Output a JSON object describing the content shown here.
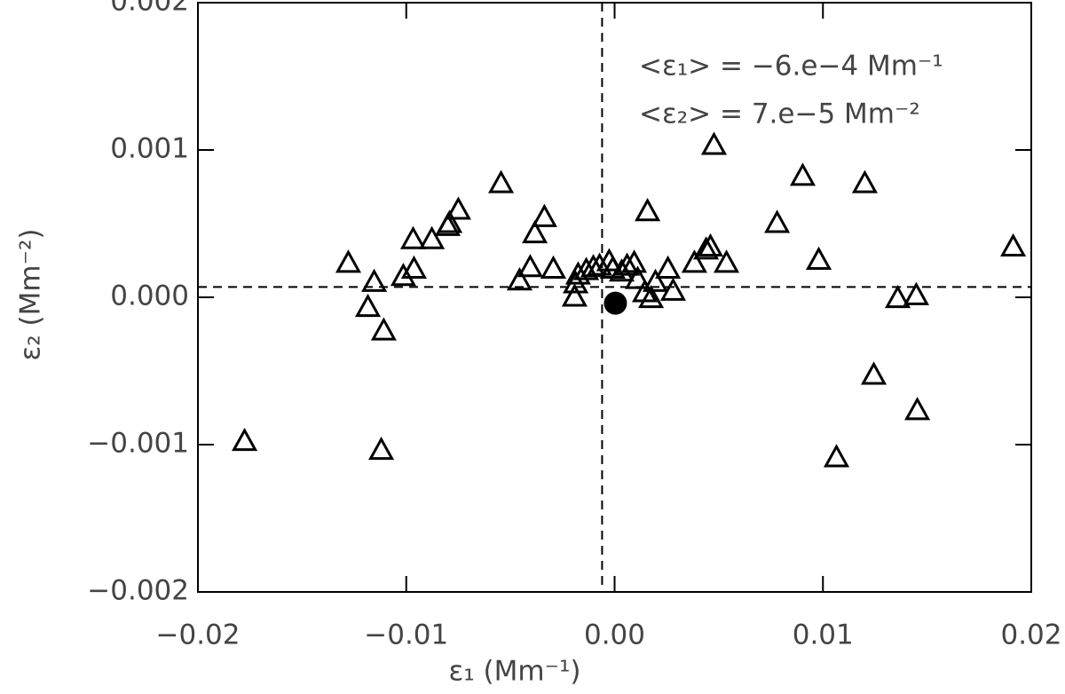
{
  "chart_data": {
    "type": "scatter",
    "xlabel": "ε₁ (Mm⁻¹)",
    "ylabel": "ε₂ (Mm⁻²)",
    "annotations": [
      "<ε₁> = −6.e−4 Mm⁻¹",
      "<ε₂> = 7.e−5 Mm⁻²"
    ],
    "xlim": [
      -0.02,
      0.02
    ],
    "ylim": [
      -0.002,
      0.002
    ],
    "xticks": [
      {
        "value": -0.02,
        "label": "−0.02"
      },
      {
        "value": -0.01,
        "label": "−0.01"
      },
      {
        "value": 0,
        "label": "0.00"
      },
      {
        "value": 0.01,
        "label": "0.01"
      },
      {
        "value": 0.02,
        "label": "0.02"
      }
    ],
    "yticks": [
      {
        "value": -0.002,
        "label": "−0.002"
      },
      {
        "value": -0.001,
        "label": "−0.001"
      },
      {
        "value": 0,
        "label": "0.000"
      },
      {
        "value": 0.001,
        "label": "0.001"
      },
      {
        "value": 0.002,
        "label": "0.002"
      }
    ],
    "color": "#000000",
    "x": [
      -0.01776,
      -0.01278,
      -0.01154,
      -0.01184,
      -0.01108,
      -0.0112,
      -0.01014,
      -0.00963,
      -0.00967,
      -0.00877,
      -0.00801,
      -0.00792,
      -0.0075,
      -0.00545,
      -0.00456,
      -0.00383,
      -0.00337,
      -0.00405,
      -0.00294,
      -0.00192,
      -0.00187,
      -0.00175,
      -0.00136,
      -0.00102,
      -0.00072,
      -0.00026,
      -9e-05,
      0.00034,
      0.0006,
      0.00094,
      0.00111,
      0.00145,
      0.00175,
      0.00158,
      0.00196,
      0.00256,
      0.00281,
      0.00383,
      0.00439,
      0.0046,
      0.00477,
      0.00537,
      0.0078,
      0.00903,
      0.0098,
      0.01065,
      0.01201,
      0.01244,
      0.01359,
      0.01448,
      0.01453,
      0.01913
    ],
    "y": [
      -0.00098,
      0.00023,
      0.0001,
      -7e-05,
      -0.00023,
      -0.00104,
      0.00014,
      0.00019,
      0.00039,
      0.00039,
      0.00048,
      0.0005,
      0.00059,
      0.00077,
      0.00011,
      0.00043,
      0.00054,
      0.0002,
      0.00019,
      0.0,
      9e-05,
      0.00015,
      0.00018,
      0.0002,
      0.00021,
      0.00024,
      0.00019,
      0.00017,
      0.00021,
      0.00023,
      0.00012,
      3e-05,
      -1e-05,
      0.00058,
      0.0001,
      0.00019,
      4e-05,
      0.00023,
      0.00032,
      0.00034,
      0.00103,
      0.00023,
      0.0005,
      0.00082,
      0.00025,
      -0.00109,
      0.00077,
      -0.00053,
      -1e-05,
      1e-05,
      -0.00077,
      0.00034
    ],
    "highlight": {
      "x": 4e-05,
      "y": -4e-05
    },
    "mean_lines": {
      "x": -0.0006,
      "y": 7e-05
    }
  }
}
